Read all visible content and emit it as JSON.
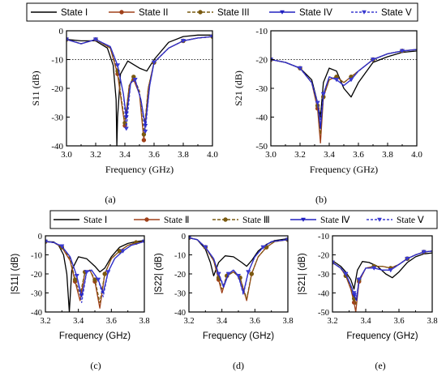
{
  "legend_top": {
    "entries": [
      "State I",
      "State II",
      "State III",
      "State IV",
      "State V"
    ]
  },
  "legend_bottom": {
    "entries": [
      "State  Ⅰ",
      "State  Ⅱ",
      "State Ⅲ",
      "State  Ⅳ",
      "State  Ⅴ"
    ]
  },
  "series_style": [
    {
      "color": "#000000",
      "dash": "",
      "marker": "none"
    },
    {
      "color": "#a0401a",
      "dash": "",
      "marker": "circle"
    },
    {
      "color": "#7a5a10",
      "dash": "4,2",
      "marker": "circle"
    },
    {
      "color": "#2020c0",
      "dash": "",
      "marker": "triangle-down"
    },
    {
      "color": "#3a3ad0",
      "dash": "3,2",
      "marker": "triangle-down"
    }
  ],
  "captions": [
    "(a)",
    "(b)",
    "(c)",
    "(d)",
    "(e)"
  ],
  "chart_data": [
    {
      "id": "a",
      "type": "line",
      "xlabel": "Frequency (GHz)",
      "ylabel": "S11 (dB)",
      "xlim": [
        3.0,
        4.0
      ],
      "ylim": [
        -40,
        0
      ],
      "xticks": [
        "3.0",
        "3.2",
        "3.4",
        "3.6",
        "3.8",
        "4.0"
      ],
      "yticks": [
        "0",
        "-10",
        "-20",
        "-30",
        "-40"
      ],
      "reference_line": -10,
      "series": [
        {
          "name": "State I",
          "x": [
            3.0,
            3.1,
            3.2,
            3.28,
            3.32,
            3.34,
            3.345,
            3.35,
            3.37,
            3.42,
            3.5,
            3.55,
            3.6,
            3.7,
            3.8,
            3.9,
            4.0
          ],
          "y": [
            -3,
            -3.5,
            -3.5,
            -6,
            -12,
            -24,
            -40,
            -30,
            -15,
            -10.5,
            -13,
            -14,
            -10,
            -4,
            -2,
            -1.5,
            -1.5
          ]
        },
        {
          "name": "State II",
          "x": [
            3.0,
            3.1,
            3.2,
            3.3,
            3.35,
            3.38,
            3.4,
            3.43,
            3.46,
            3.5,
            3.53,
            3.56,
            3.6,
            3.7,
            3.8,
            3.9,
            4.0
          ],
          "y": [
            -3,
            -4.5,
            -3,
            -6,
            -15,
            -26,
            -33,
            -19,
            -17,
            -22,
            -38,
            -20,
            -11,
            -6,
            -3.5,
            -2.5,
            -2
          ]
        },
        {
          "name": "State III",
          "x": [
            3.0,
            3.1,
            3.2,
            3.3,
            3.35,
            3.38,
            3.4,
            3.43,
            3.46,
            3.5,
            3.53,
            3.56,
            3.6,
            3.7,
            3.8,
            3.9,
            4.0
          ],
          "y": [
            -3,
            -4.5,
            -3,
            -6,
            -14,
            -25,
            -32,
            -19,
            -16,
            -21,
            -36,
            -20,
            -11,
            -6,
            -3.5,
            -2.5,
            -2
          ]
        },
        {
          "name": "State IV",
          "x": [
            3.0,
            3.1,
            3.2,
            3.3,
            3.35,
            3.39,
            3.41,
            3.44,
            3.47,
            3.51,
            3.54,
            3.57,
            3.6,
            3.7,
            3.8,
            3.9,
            4.0
          ],
          "y": [
            -3,
            -4.5,
            -3,
            -5.5,
            -12,
            -22,
            -30,
            -18,
            -17,
            -24,
            -33,
            -19,
            -11,
            -6,
            -3.5,
            -2.5,
            -2
          ]
        },
        {
          "name": "State V",
          "x": [
            3.0,
            3.1,
            3.2,
            3.3,
            3.35,
            3.39,
            3.41,
            3.44,
            3.47,
            3.51,
            3.54,
            3.57,
            3.6,
            3.7,
            3.8,
            3.9,
            4.0
          ],
          "y": [
            -3,
            -4.5,
            -3,
            -5.5,
            -12,
            -22,
            -34,
            -18,
            -17,
            -24,
            -35,
            -19,
            -11,
            -6,
            -3.5,
            -2.5,
            -2
          ]
        }
      ]
    },
    {
      "id": "b",
      "type": "line",
      "xlabel": "Frequency (GHz)",
      "ylabel": "S21 (dB)",
      "xlim": [
        3.0,
        4.0
      ],
      "ylim": [
        -50,
        -10
      ],
      "xticks": [
        "3.0",
        "3.2",
        "3.4",
        "3.6",
        "3.8",
        "4.0"
      ],
      "yticks": [
        "-10",
        "-20",
        "-30",
        "-40",
        "-50"
      ],
      "reference_line": -20,
      "series": [
        {
          "name": "State I",
          "x": [
            3.0,
            3.1,
            3.2,
            3.28,
            3.32,
            3.34,
            3.36,
            3.4,
            3.45,
            3.5,
            3.55,
            3.6,
            3.7,
            3.8,
            3.9,
            4.0
          ],
          "y": [
            -20,
            -21,
            -23,
            -27,
            -35,
            -40,
            -28,
            -23,
            -24,
            -30,
            -33,
            -28,
            -21,
            -19,
            -17.5,
            -17
          ]
        },
        {
          "name": "State II",
          "x": [
            3.0,
            3.1,
            3.2,
            3.28,
            3.32,
            3.34,
            3.36,
            3.4,
            3.45,
            3.5,
            3.55,
            3.6,
            3.7,
            3.8,
            3.9,
            4.0
          ],
          "y": [
            -20,
            -21,
            -23,
            -28,
            -37,
            -49,
            -33,
            -27,
            -26,
            -28,
            -26,
            -24,
            -20,
            -18,
            -17,
            -16.5
          ]
        },
        {
          "name": "State III",
          "x": [
            3.0,
            3.1,
            3.2,
            3.28,
            3.32,
            3.34,
            3.36,
            3.4,
            3.45,
            3.5,
            3.55,
            3.6,
            3.7,
            3.8,
            3.9,
            4.0
          ],
          "y": [
            -20,
            -21,
            -23,
            -28,
            -36,
            -46,
            -33,
            -27,
            -26,
            -28,
            -26,
            -24,
            -20,
            -18,
            -17,
            -16.5
          ]
        },
        {
          "name": "State IV",
          "x": [
            3.0,
            3.1,
            3.2,
            3.28,
            3.32,
            3.34,
            3.36,
            3.4,
            3.45,
            3.5,
            3.55,
            3.6,
            3.7,
            3.8,
            3.9,
            4.0
          ],
          "y": [
            -20,
            -21,
            -23,
            -28,
            -35,
            -44,
            -32,
            -26,
            -27,
            -29,
            -27,
            -24,
            -20,
            -18,
            -17,
            -16.5
          ]
        },
        {
          "name": "State V",
          "x": [
            3.0,
            3.1,
            3.2,
            3.28,
            3.32,
            3.34,
            3.36,
            3.4,
            3.45,
            3.5,
            3.55,
            3.6,
            3.7,
            3.8,
            3.9,
            4.0
          ],
          "y": [
            -20,
            -21,
            -23,
            -28,
            -35,
            -42,
            -32,
            -26,
            -27,
            -29,
            -27,
            -24,
            -20,
            -18,
            -17,
            -16.5
          ]
        }
      ]
    },
    {
      "id": "c",
      "type": "line",
      "xlabel": "Frequency (GHz)",
      "ylabel": "|S11| (dB)",
      "xlim": [
        3.2,
        3.8
      ],
      "ylim": [
        -40,
        0
      ],
      "xticks": [
        "3.2",
        "3.4",
        "3.6",
        "3.8"
      ],
      "yticks": [
        "0",
        "-10",
        "-20",
        "-30",
        "-40"
      ],
      "series": [
        {
          "name": "State  Ⅰ",
          "x": [
            3.2,
            3.25,
            3.28,
            3.31,
            3.33,
            3.345,
            3.36,
            3.4,
            3.45,
            3.5,
            3.53,
            3.56,
            3.6,
            3.65,
            3.7,
            3.75,
            3.8
          ],
          "y": [
            -3,
            -3.2,
            -5,
            -10,
            -20,
            -40,
            -18,
            -11,
            -12,
            -16,
            -19,
            -17,
            -11,
            -6,
            -4,
            -3,
            -2.5
          ]
        },
        {
          "name": "State  Ⅱ",
          "x": [
            3.2,
            3.25,
            3.3,
            3.35,
            3.38,
            3.41,
            3.44,
            3.47,
            3.5,
            3.53,
            3.56,
            3.6,
            3.65,
            3.7,
            3.75,
            3.8
          ],
          "y": [
            -3,
            -3.5,
            -6,
            -13,
            -24,
            -34,
            -19,
            -18,
            -24,
            -38,
            -20,
            -12,
            -8,
            -5,
            -3.5,
            -3
          ]
        },
        {
          "name": "State Ⅲ",
          "x": [
            3.2,
            3.25,
            3.3,
            3.35,
            3.38,
            3.41,
            3.44,
            3.47,
            3.5,
            3.53,
            3.56,
            3.6,
            3.65,
            3.7,
            3.75,
            3.8
          ],
          "y": [
            -3,
            -3.5,
            -6,
            -12,
            -23,
            -31,
            -19,
            -18,
            -23,
            -35,
            -20,
            -12,
            -8,
            -5,
            -3.5,
            -3
          ]
        },
        {
          "name": "State  Ⅳ",
          "x": [
            3.2,
            3.25,
            3.3,
            3.35,
            3.39,
            3.42,
            3.45,
            3.48,
            3.52,
            3.55,
            3.58,
            3.62,
            3.67,
            3.72,
            3.8
          ],
          "y": [
            -3,
            -3.5,
            -5.5,
            -11,
            -21,
            -32,
            -19,
            -18,
            -23,
            -30,
            -19,
            -12,
            -8,
            -5,
            -3
          ]
        },
        {
          "name": "State  Ⅴ",
          "x": [
            3.2,
            3.25,
            3.3,
            3.35,
            3.39,
            3.42,
            3.45,
            3.48,
            3.52,
            3.55,
            3.58,
            3.62,
            3.67,
            3.72,
            3.8
          ],
          "y": [
            -3,
            -3.5,
            -5.5,
            -11,
            -21,
            -35,
            -19,
            -18,
            -23,
            -32,
            -19,
            -12,
            -8,
            -5,
            -3
          ]
        }
      ]
    },
    {
      "id": "d",
      "type": "line",
      "xlabel": "Frequency (GHz)",
      "ylabel": "|S22| (dB)",
      "xlim": [
        3.2,
        3.8
      ],
      "ylim": [
        -40,
        0
      ],
      "xticks": [
        "3.2",
        "3.4",
        "3.6",
        "3.8"
      ],
      "yticks": [
        "0",
        "-10",
        "-20",
        "-30",
        "-40"
      ],
      "series": [
        {
          "name": "State  Ⅰ",
          "x": [
            3.2,
            3.25,
            3.3,
            3.33,
            3.35,
            3.38,
            3.42,
            3.47,
            3.52,
            3.55,
            3.58,
            3.62,
            3.67,
            3.72,
            3.8
          ],
          "y": [
            -1,
            -2,
            -7,
            -14,
            -21,
            -14,
            -10.5,
            -11,
            -14,
            -16,
            -13,
            -8,
            -4.5,
            -2.5,
            -1.5
          ]
        },
        {
          "name": "State  Ⅱ",
          "x": [
            3.2,
            3.25,
            3.3,
            3.35,
            3.38,
            3.4,
            3.43,
            3.47,
            3.51,
            3.55,
            3.58,
            3.62,
            3.67,
            3.72,
            3.8
          ],
          "y": [
            -1,
            -2,
            -6,
            -13,
            -23,
            -30,
            -21,
            -19,
            -22,
            -34,
            -20,
            -11,
            -6,
            -3,
            -2
          ]
        },
        {
          "name": "State Ⅲ",
          "x": [
            3.2,
            3.25,
            3.3,
            3.35,
            3.38,
            3.4,
            3.43,
            3.47,
            3.51,
            3.55,
            3.58,
            3.62,
            3.67,
            3.72,
            3.8
          ],
          "y": [
            -1,
            -2,
            -6,
            -13,
            -22,
            -28,
            -21,
            -19,
            -22,
            -33,
            -20,
            -11,
            -6,
            -3,
            -2
          ]
        },
        {
          "name": "State  Ⅳ",
          "x": [
            3.2,
            3.25,
            3.3,
            3.35,
            3.38,
            3.41,
            3.44,
            3.47,
            3.5,
            3.53,
            3.56,
            3.6,
            3.65,
            3.7,
            3.8
          ],
          "y": [
            -1,
            -2,
            -6,
            -12,
            -20,
            -27,
            -20,
            -18,
            -21,
            -30,
            -19,
            -11,
            -6,
            -3,
            -2
          ]
        },
        {
          "name": "State  Ⅴ",
          "x": [
            3.2,
            3.25,
            3.3,
            3.35,
            3.38,
            3.41,
            3.44,
            3.47,
            3.5,
            3.53,
            3.56,
            3.6,
            3.65,
            3.7,
            3.8
          ],
          "y": [
            -1,
            -2,
            -6,
            -12,
            -20,
            -26,
            -20,
            -18,
            -21,
            -31,
            -19,
            -11,
            -6,
            -3,
            -2
          ]
        }
      ]
    },
    {
      "id": "e",
      "type": "line",
      "xlabel": "Frequency (GHz)",
      "ylabel": "|S21| (dB)",
      "xlim": [
        3.2,
        3.8
      ],
      "ylim": [
        -50,
        -10
      ],
      "xticks": [
        "3.2",
        "3.4",
        "3.6",
        "3.8"
      ],
      "yticks": [
        "-10",
        "-20",
        "-30",
        "-40",
        "-50"
      ],
      "series": [
        {
          "name": "State  Ⅰ",
          "x": [
            3.2,
            3.25,
            3.28,
            3.31,
            3.33,
            3.35,
            3.38,
            3.42,
            3.47,
            3.52,
            3.56,
            3.6,
            3.65,
            3.7,
            3.75,
            3.8
          ],
          "y": [
            -23,
            -26,
            -29,
            -33,
            -38,
            -28,
            -23.5,
            -24,
            -26,
            -30,
            -32,
            -29,
            -24,
            -21,
            -19.5,
            -19
          ]
        },
        {
          "name": "State  Ⅱ",
          "x": [
            3.2,
            3.25,
            3.28,
            3.31,
            3.33,
            3.34,
            3.36,
            3.4,
            3.45,
            3.5,
            3.55,
            3.6,
            3.65,
            3.7,
            3.75,
            3.8
          ],
          "y": [
            -24,
            -27,
            -31,
            -38,
            -45,
            -50,
            -34,
            -27,
            -26,
            -26,
            -27,
            -25,
            -22,
            -20,
            -18.5,
            -18
          ]
        },
        {
          "name": "State Ⅲ",
          "x": [
            3.2,
            3.25,
            3.28,
            3.31,
            3.33,
            3.34,
            3.36,
            3.4,
            3.45,
            3.5,
            3.55,
            3.6,
            3.65,
            3.7,
            3.75,
            3.8
          ],
          "y": [
            -24,
            -27,
            -31,
            -37,
            -43,
            -46,
            -33,
            -27,
            -26,
            -26,
            -27,
            -25,
            -22,
            -20,
            -18.5,
            -18
          ]
        },
        {
          "name": "State  Ⅳ",
          "x": [
            3.2,
            3.25,
            3.28,
            3.31,
            3.33,
            3.345,
            3.36,
            3.4,
            3.45,
            3.5,
            3.55,
            3.6,
            3.65,
            3.7,
            3.75,
            3.8
          ],
          "y": [
            -24,
            -27,
            -30,
            -36,
            -41,
            -44,
            -33,
            -27,
            -27,
            -28,
            -28,
            -25,
            -22,
            -20,
            -18.5,
            -18
          ]
        },
        {
          "name": "State  Ⅴ",
          "x": [
            3.2,
            3.25,
            3.28,
            3.31,
            3.33,
            3.345,
            3.36,
            3.4,
            3.45,
            3.5,
            3.55,
            3.6,
            3.65,
            3.7,
            3.75,
            3.8
          ],
          "y": [
            -24,
            -27,
            -30,
            -36,
            -40,
            -42,
            -33,
            -27,
            -27,
            -28,
            -28,
            -25,
            -22,
            -20,
            -18.5,
            -18
          ]
        }
      ]
    }
  ]
}
